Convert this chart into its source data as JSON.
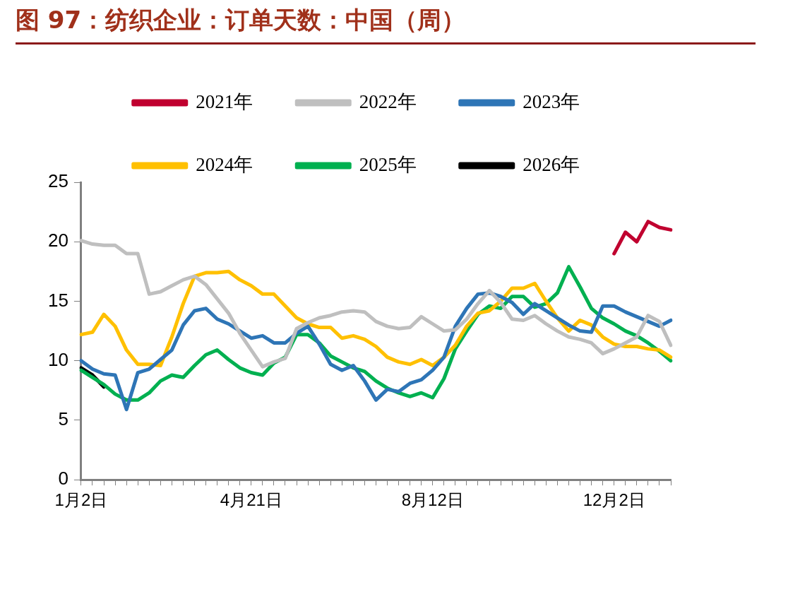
{
  "chart_data": {
    "type": "line",
    "title": "图 97：纺织企业：订单天数：中国（周）",
    "categories": [
      "1月2日",
      null,
      null,
      null,
      null,
      null,
      null,
      null,
      null,
      null,
      null,
      null,
      null,
      null,
      null,
      "4月21日",
      null,
      null,
      null,
      null,
      null,
      null,
      null,
      null,
      null,
      null,
      null,
      null,
      null,
      null,
      null,
      "8月12日",
      null,
      null,
      null,
      null,
      null,
      null,
      null,
      null,
      null,
      null,
      null,
      null,
      null,
      null,
      null,
      "12月2日",
      null,
      null,
      null,
      null,
      null
    ],
    "ylim": [
      0,
      25
    ],
    "yticks": [
      0,
      5,
      10,
      15,
      20,
      25
    ],
    "legend": "top",
    "marker": "none",
    "line_style": "solid",
    "series": [
      {
        "name": "2021年",
        "color": "#c0002f",
        "values": [
          null,
          null,
          null,
          null,
          null,
          null,
          null,
          null,
          null,
          null,
          null,
          null,
          null,
          null,
          null,
          null,
          null,
          null,
          null,
          null,
          null,
          null,
          null,
          null,
          null,
          null,
          null,
          null,
          null,
          null,
          null,
          null,
          null,
          null,
          null,
          null,
          null,
          null,
          null,
          null,
          null,
          null,
          null,
          null,
          null,
          null,
          null,
          19.0,
          20.8,
          20.0,
          21.7,
          21.2,
          21.0
        ]
      },
      {
        "name": "2022年",
        "color": "#bfbfbf",
        "values": [
          20.1,
          19.8,
          19.7,
          19.7,
          19.0,
          19.0,
          15.6,
          15.8,
          16.3,
          16.8,
          17.1,
          16.4,
          15.2,
          14.0,
          12.3,
          10.9,
          9.5,
          9.9,
          10.2,
          12.7,
          13.2,
          13.6,
          13.8,
          14.1,
          14.2,
          14.1,
          13.3,
          12.9,
          12.7,
          12.8,
          13.7,
          13.1,
          12.5,
          12.6,
          13.5,
          14.8,
          15.9,
          14.9,
          13.5,
          13.4,
          13.8,
          13.1,
          12.5,
          12.0,
          11.8,
          11.5,
          10.6,
          11.0,
          11.5,
          12.0,
          13.8,
          13.3,
          11.3
        ]
      },
      {
        "name": "2023年",
        "color": "#2e75b6",
        "values": [
          10.0,
          9.3,
          8.9,
          8.8,
          5.9,
          9.0,
          9.3,
          10.1,
          10.9,
          13.0,
          14.2,
          14.4,
          13.5,
          13.1,
          12.5,
          11.9,
          12.1,
          11.5,
          11.5,
          12.3,
          12.9,
          11.4,
          9.7,
          9.2,
          9.6,
          8.3,
          6.7,
          7.6,
          7.4,
          8.1,
          8.4,
          9.2,
          10.3,
          12.9,
          14.4,
          15.6,
          15.7,
          15.4,
          14.9,
          13.9,
          14.8,
          14.2,
          13.6,
          13.0,
          12.5,
          12.4,
          14.6,
          14.6,
          14.1,
          13.7,
          13.3,
          12.9,
          13.4
        ]
      },
      {
        "name": "2024年",
        "color": "#ffc000",
        "values": [
          12.2,
          12.4,
          13.9,
          12.9,
          10.9,
          9.7,
          9.7,
          9.6,
          12.0,
          14.8,
          17.1,
          17.4,
          17.4,
          17.5,
          16.8,
          16.3,
          15.6,
          15.6,
          14.6,
          13.6,
          13.1,
          12.8,
          12.8,
          11.9,
          12.1,
          11.8,
          11.2,
          10.3,
          9.9,
          9.7,
          10.1,
          9.6,
          10.3,
          11.3,
          12.9,
          14.0,
          14.2,
          15.0,
          16.1,
          16.1,
          16.5,
          15.0,
          13.6,
          12.5,
          13.4,
          13.0,
          12.0,
          11.4,
          11.2,
          11.2,
          11.0,
          10.9,
          10.3
        ]
      },
      {
        "name": "2025年",
        "color": "#00b050",
        "values": [
          9.2,
          8.6,
          8.0,
          7.2,
          6.7,
          6.7,
          7.3,
          8.3,
          8.8,
          8.6,
          9.6,
          10.5,
          10.9,
          10.1,
          9.4,
          9.0,
          8.8,
          9.8,
          10.3,
          12.2,
          12.2,
          11.5,
          10.4,
          9.9,
          9.4,
          9.1,
          8.3,
          7.7,
          7.3,
          7.0,
          7.3,
          6.9,
          8.5,
          11.0,
          12.5,
          13.9,
          14.6,
          14.4,
          15.4,
          15.4,
          14.5,
          14.8,
          15.7,
          17.9,
          16.2,
          14.4,
          13.6,
          13.1,
          12.5,
          12.1,
          11.5,
          10.8,
          10.0
        ]
      },
      {
        "name": "2026年",
        "color": "#000000",
        "values": [
          9.4,
          8.8,
          7.8,
          null,
          null,
          null,
          null,
          null,
          null,
          null,
          null,
          null,
          null,
          null,
          null,
          null,
          null,
          null,
          null,
          null,
          null,
          null,
          null,
          null,
          null,
          null,
          null,
          null,
          null,
          null,
          null,
          null,
          null,
          null,
          null,
          null,
          null,
          null,
          null,
          null,
          null,
          null,
          null,
          null,
          null,
          null,
          null,
          null,
          null,
          null,
          null,
          null,
          null
        ]
      }
    ]
  }
}
